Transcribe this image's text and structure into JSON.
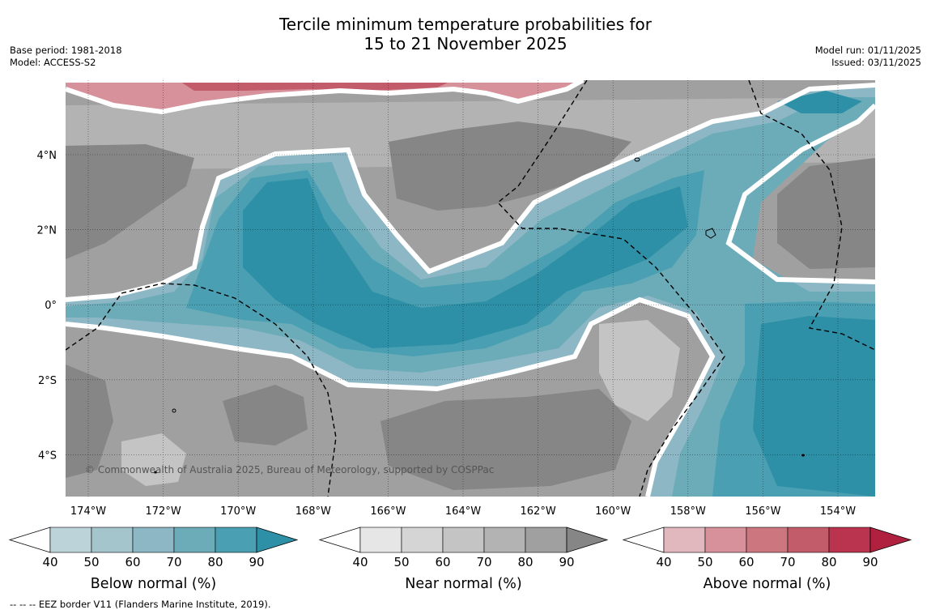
{
  "title_line1": "Tercile minimum temperature probabilities for",
  "title_line2": "15 to 21 November 2025",
  "base_period": "Base period: 1981-2018",
  "model": "Model: ACCESS-S2",
  "model_run": "Model run: 01/11/2025",
  "issued": "Issued: 03/11/2025",
  "copyright": "© Commonwealth of Australia 2025, Bureau of Meteorology, supported by COSPPac",
  "footnote": "--  --  -- EEZ border V11 (Flanders Marine Institute, 2019).",
  "lon_ticks": [
    "174°W",
    "172°W",
    "170°W",
    "168°W",
    "166°W",
    "164°W",
    "162°W",
    "160°W",
    "158°W",
    "156°W",
    "154°W"
  ],
  "lat_ticks": [
    "4°N",
    "2°N",
    "0°",
    "2°S",
    "4°S"
  ],
  "colorbars": [
    {
      "title": "Below normal (%)",
      "ticks": [
        "40",
        "50",
        "60",
        "70",
        "80",
        "90"
      ],
      "colors": [
        "#ffffff",
        "#bcd3da",
        "#a5c5cc",
        "#8db7c4",
        "#6cacb9",
        "#4aa0b2",
        "#2e90a6"
      ]
    },
    {
      "title": "Near normal (%)",
      "ticks": [
        "40",
        "50",
        "60",
        "70",
        "80",
        "90"
      ],
      "colors": [
        "#ffffff",
        "#e6e6e6",
        "#d5d5d5",
        "#c4c4c4",
        "#b3b3b3",
        "#a0a0a0",
        "#868686"
      ]
    },
    {
      "title": "Above normal (%)",
      "ticks": [
        "40",
        "50",
        "60",
        "70",
        "80",
        "90"
      ],
      "colors": [
        "#ffffff",
        "#e2b8bf",
        "#d6919b",
        "#cc7680",
        "#c25b6a",
        "#ba3450",
        "#b0213f"
      ]
    }
  ]
}
